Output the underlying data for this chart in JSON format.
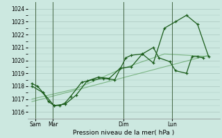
{
  "xlabel": "Pression niveau de la mer( hPa )",
  "ylim": [
    1015.5,
    1024.5
  ],
  "yticks": [
    1016,
    1017,
    1018,
    1019,
    1020,
    1021,
    1022,
    1023,
    1024
  ],
  "background_color": "#cce8e0",
  "grid_color": "#aac8c0",
  "line_color": "#1a5c1a",
  "line_color_light": "#3a8c3a",
  "series1": {
    "x": [
      0,
      0.25,
      0.5,
      0.75,
      1.0,
      1.25,
      1.5,
      1.75,
      2.25,
      2.75,
      3.25,
      3.75,
      4.25,
      4.5,
      5.0,
      5.5,
      5.75,
      6.25,
      6.5,
      7.0,
      7.25,
      7.5,
      7.75
    ],
    "y": [
      1018.2,
      1018.0,
      1017.5,
      1016.8,
      1016.5,
      1016.5,
      1016.7,
      1017.2,
      1018.3,
      1018.5,
      1018.6,
      1018.5,
      1020.2,
      1020.4,
      1020.5,
      1021.0,
      1020.2,
      1019.9,
      1019.2,
      1019.0,
      1020.3,
      1020.3,
      1020.2
    ]
  },
  "series2": {
    "x": [
      0,
      0.5,
      1.0,
      1.5,
      2.0,
      2.5,
      3.0,
      3.5,
      4.0,
      4.5,
      5.0,
      5.5,
      6.0,
      6.5,
      7.0,
      7.5,
      8.0
    ],
    "y": [
      1018.0,
      1017.5,
      1016.5,
      1016.6,
      1017.3,
      1018.4,
      1018.7,
      1018.6,
      1019.4,
      1019.5,
      1020.5,
      1019.8,
      1022.5,
      1023.0,
      1023.5,
      1022.8,
      1020.3
    ]
  },
  "series3": {
    "x": [
      0.0,
      2.0,
      4.0,
      6.0,
      8.0
    ],
    "y": [
      1017.0,
      1017.8,
      1019.3,
      1020.5,
      1020.3
    ]
  },
  "series4": {
    "x": [
      0.0,
      8.0
    ],
    "y": [
      1016.8,
      1020.4
    ]
  },
  "xlim": [
    -0.2,
    8.5
  ],
  "xtick_positions": [
    0.15,
    0.95,
    4.15,
    6.35
  ],
  "xtick_labels": [
    "Sam",
    "Mar",
    "Dim",
    "Lun"
  ],
  "vline_positions": [
    0.15,
    0.95,
    4.15,
    6.35
  ]
}
